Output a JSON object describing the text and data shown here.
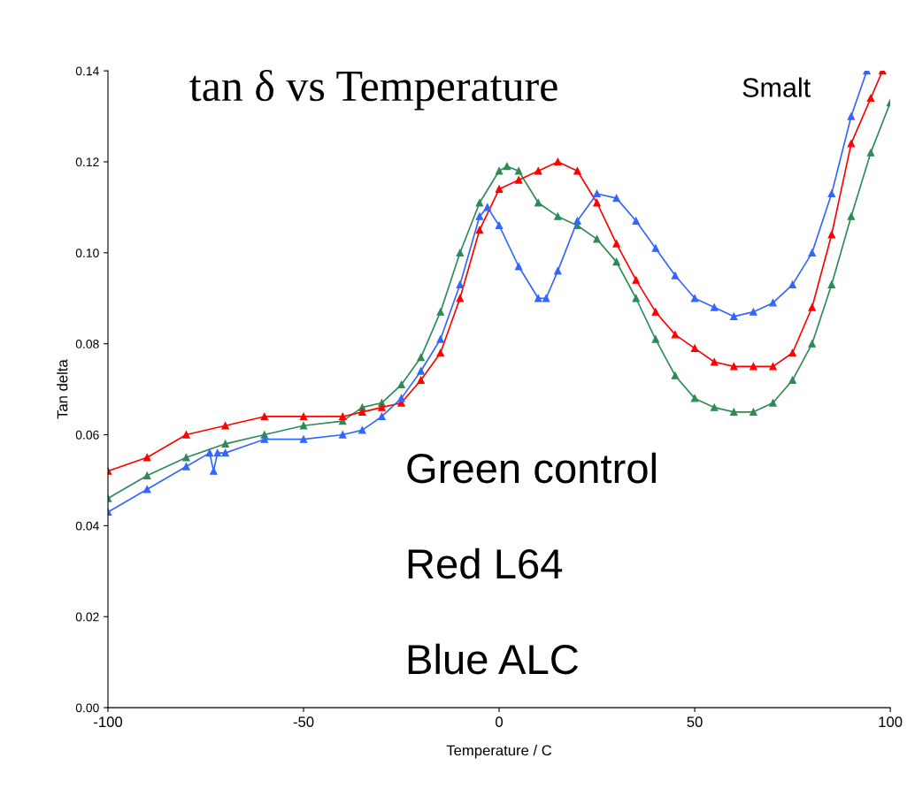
{
  "chart_data": {
    "type": "line",
    "title": "tan δ vs Temperature",
    "xlabel": "Temperature / C",
    "ylabel": "Tan delta",
    "annotations": [
      "Smalt",
      "Green control",
      "Red L64",
      "Blue ALC"
    ],
    "xlim": [
      -100,
      100
    ],
    "xticks": [
      -100,
      -50,
      0,
      50,
      100
    ],
    "ylim": [
      0,
      0.14
    ],
    "yticks": [
      {
        "value": 0,
        "label": "0.00"
      },
      {
        "value": 0.02,
        "label": "0.02"
      },
      {
        "value": 0.04,
        "label": "0.04"
      },
      {
        "value": 0.06,
        "label": "0.06"
      },
      {
        "value": 0.08,
        "label": "0.08"
      },
      {
        "value": 0.1,
        "label": "0.10"
      },
      {
        "value": 0.12,
        "label": "0.12"
      },
      {
        "value": 0.14,
        "label": "0.14"
      }
    ],
    "grid": false,
    "legend": false,
    "marker": "triangle",
    "line_style": "solid",
    "series": [
      {
        "color": "#2e8b57",
        "x": [
          -100,
          -90,
          -80,
          -70,
          -60,
          -50,
          -40,
          -35,
          -30,
          -25,
          -20,
          -15,
          -10,
          -5,
          0,
          2,
          5,
          10,
          15,
          20,
          25,
          30,
          35,
          40,
          45,
          50,
          55,
          60,
          65,
          70,
          75,
          80,
          85,
          90,
          95,
          100
        ],
        "values": [
          0.046,
          0.051,
          0.055,
          0.058,
          0.06,
          0.062,
          0.063,
          0.066,
          0.067,
          0.071,
          0.077,
          0.087,
          0.1,
          0.111,
          0.118,
          0.119,
          0.118,
          0.111,
          0.108,
          0.106,
          0.103,
          0.098,
          0.09,
          0.081,
          0.073,
          0.068,
          0.066,
          0.065,
          0.065,
          0.067,
          0.072,
          0.08,
          0.093,
          0.108,
          0.122,
          0.133
        ]
      },
      {
        "color": "#ff0000",
        "x": [
          -100,
          -90,
          -80,
          -70,
          -60,
          -50,
          -40,
          -35,
          -30,
          -25,
          -20,
          -15,
          -10,
          -5,
          0,
          5,
          10,
          15,
          20,
          25,
          30,
          35,
          40,
          45,
          50,
          55,
          60,
          65,
          70,
          75,
          80,
          85,
          90,
          95,
          98
        ],
        "values": [
          0.052,
          0.055,
          0.06,
          0.062,
          0.064,
          0.064,
          0.064,
          0.065,
          0.066,
          0.067,
          0.072,
          0.078,
          0.09,
          0.105,
          0.114,
          0.116,
          0.118,
          0.12,
          0.118,
          0.111,
          0.102,
          0.094,
          0.087,
          0.082,
          0.079,
          0.076,
          0.075,
          0.075,
          0.075,
          0.078,
          0.088,
          0.104,
          0.124,
          0.134,
          0.14
        ]
      },
      {
        "color": "#3366ff",
        "x": [
          -100,
          -90,
          -80,
          -74,
          -73,
          -72,
          -70,
          -60,
          -50,
          -40,
          -35,
          -30,
          -25,
          -20,
          -15,
          -10,
          -5,
          -3,
          0,
          5,
          10,
          12,
          15,
          20,
          25,
          30,
          35,
          40,
          45,
          50,
          55,
          60,
          65,
          70,
          75,
          80,
          85,
          90,
          94
        ],
        "values": [
          0.043,
          0.048,
          0.053,
          0.056,
          0.052,
          0.056,
          0.056,
          0.059,
          0.059,
          0.06,
          0.061,
          0.064,
          0.068,
          0.074,
          0.081,
          0.093,
          0.108,
          0.11,
          0.106,
          0.097,
          0.09,
          0.09,
          0.096,
          0.107,
          0.113,
          0.112,
          0.107,
          0.101,
          0.095,
          0.09,
          0.088,
          0.086,
          0.087,
          0.089,
          0.093,
          0.1,
          0.113,
          0.13,
          0.14
        ]
      }
    ]
  }
}
